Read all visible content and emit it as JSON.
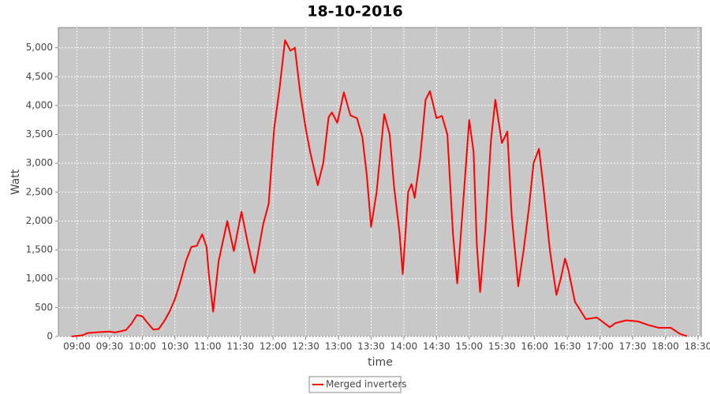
{
  "chart_data": {
    "type": "line",
    "title": "18-10-2016",
    "x_label": "time",
    "y_label": "Watt",
    "x": [
      "08:55",
      "09:05",
      "09:10",
      "09:20",
      "09:30",
      "09:35",
      "09:45",
      "09:50",
      "09:55",
      "10:00",
      "10:05",
      "10:10",
      "10:15",
      "10:20",
      "10:25",
      "10:30",
      "10:35",
      "10:40",
      "10:45",
      "10:50",
      "10:55",
      "10:59",
      "11:01",
      "11:05",
      "11:10",
      "11:18",
      "11:24",
      "11:31",
      "11:37",
      "11:43",
      "11:51",
      "11:56",
      "12:01",
      "12:06",
      "12:11",
      "12:16",
      "12:20",
      "12:25",
      "12:30",
      "12:34",
      "12:41",
      "12:46",
      "12:51",
      "12:54",
      "12:59",
      "13:05",
      "13:11",
      "13:17",
      "13:22",
      "13:26",
      "13:30",
      "13:35",
      "13:42",
      "13:47",
      "13:51",
      "13:56",
      "13:59",
      "14:04",
      "14:07",
      "14:10",
      "14:15",
      "14:20",
      "14:24",
      "14:30",
      "14:35",
      "14:40",
      "14:45",
      "14:49",
      "14:54",
      "15:00",
      "15:04",
      "15:07",
      "15:10",
      "15:15",
      "15:20",
      "15:24",
      "15:30",
      "15:35",
      "15:39",
      "15:45",
      "15:50",
      "15:55",
      "15:59",
      "16:04",
      "16:08",
      "16:14",
      "16:20",
      "16:24",
      "16:28",
      "16:31",
      "16:37",
      "16:42",
      "16:47",
      "16:54",
      "16:57",
      "17:02",
      "17:09",
      "17:14",
      "17:24",
      "17:35",
      "17:44",
      "17:54",
      "18:05",
      "18:09",
      "18:14",
      "18:20"
    ],
    "series": [
      {
        "name": "Merged inverters",
        "color": "#ff0000",
        "values": [
          0,
          20,
          60,
          75,
          85,
          70,
          110,
          220,
          370,
          350,
          230,
          120,
          130,
          260,
          430,
          650,
          950,
          1300,
          1550,
          1570,
          1770,
          1550,
          1100,
          430,
          1300,
          2000,
          1480,
          2160,
          1600,
          1100,
          1950,
          2300,
          3600,
          4300,
          5130,
          4950,
          5000,
          4200,
          3600,
          3200,
          2620,
          3000,
          3800,
          3880,
          3700,
          4230,
          3830,
          3780,
          3450,
          2800,
          1900,
          2500,
          3850,
          3500,
          2600,
          1800,
          1080,
          2500,
          2640,
          2400,
          3100,
          4100,
          4250,
          3780,
          3820,
          3500,
          1800,
          920,
          2200,
          3750,
          3200,
          1600,
          770,
          1900,
          3400,
          4100,
          3350,
          3550,
          2100,
          870,
          1500,
          2250,
          3000,
          3250,
          2600,
          1500,
          720,
          1000,
          1350,
          1150,
          600,
          450,
          300,
          320,
          330,
          260,
          160,
          230,
          280,
          260,
          200,
          150,
          150,
          100,
          40,
          5
        ]
      }
    ],
    "xlim": [
      "08:43",
      "18:33"
    ],
    "xticks": [
      "09:00",
      "09:30",
      "10:00",
      "10:30",
      "11:00",
      "11:30",
      "12:00",
      "12:30",
      "13:00",
      "13:30",
      "14:00",
      "14:30",
      "15:00",
      "15:30",
      "16:00",
      "16:30",
      "17:00",
      "17:30",
      "18:00",
      "18:30"
    ],
    "ylim": [
      0,
      5350
    ],
    "yticks": [
      0,
      500,
      {
        "value": 1000,
        "label": "1,000"
      },
      {
        "value": 1500,
        "label": "1,500"
      },
      {
        "value": 2000,
        "label": "2,000"
      },
      {
        "value": 2500,
        "label": "2,500"
      },
      {
        "value": 3000,
        "label": "3,000"
      },
      {
        "value": 3500,
        "label": "3,500"
      },
      {
        "value": 4000,
        "label": "4,000"
      },
      {
        "value": 4500,
        "label": "4,500"
      },
      {
        "value": 5000,
        "label": "5,000"
      }
    ],
    "grid": true,
    "legend": "bottom"
  }
}
